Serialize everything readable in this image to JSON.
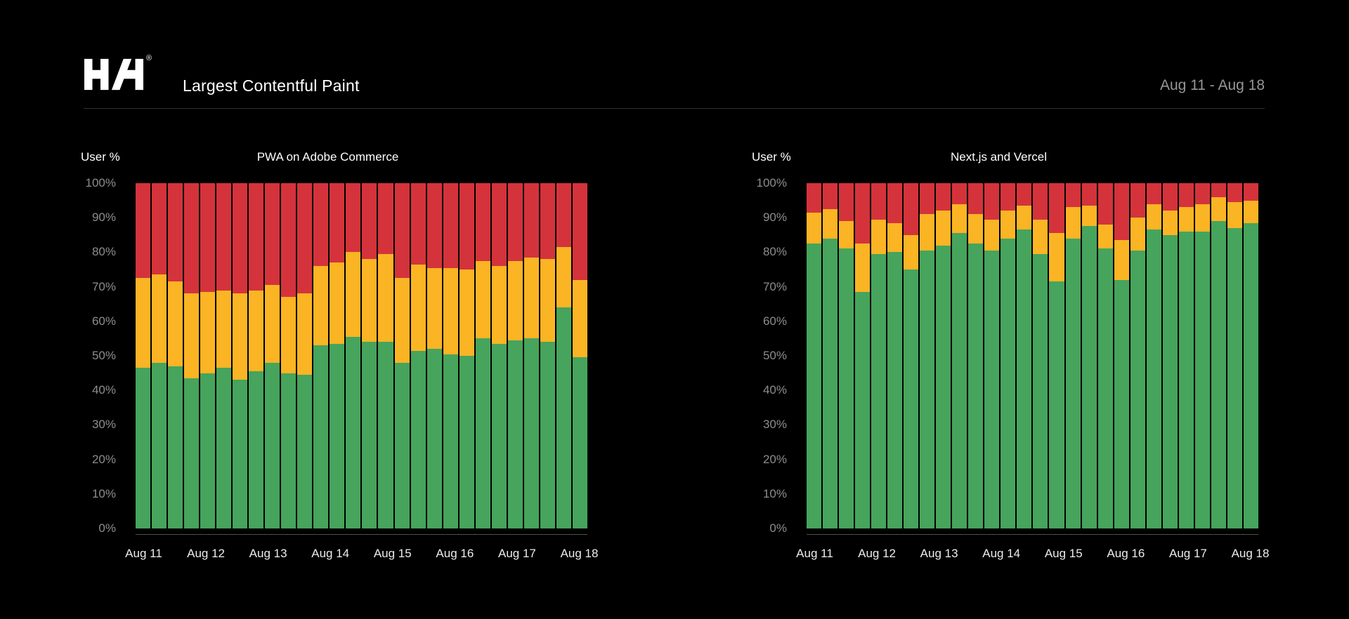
{
  "header": {
    "title": "Largest Contentful Paint",
    "date_range": "Aug 11 - Aug 18",
    "registered": "®",
    "logo_name": "HH"
  },
  "colors": {
    "background": "#000000",
    "good": "#46A45C",
    "needs_improvement": "#FBB424",
    "poor": "#D4333B",
    "y_tick_text": "#8D8D8D",
    "x_tick_text": "#ECECEC",
    "date_text": "#969696",
    "divider": "#2F2F2F",
    "axis_line": "#4F4F4F"
  },
  "chart_data": [
    {
      "type": "bar",
      "stacked": true,
      "title": "PWA on Adobe Commerce",
      "ylabel": "User %",
      "ylim": [
        0,
        100
      ],
      "grid": false,
      "legend": false,
      "y_ticks": [
        "100%",
        "90%",
        "80%",
        "70%",
        "60%",
        "50%",
        "40%",
        "30%",
        "20%",
        "10%",
        "0%"
      ],
      "x_tick_labels": [
        "Aug 11",
        "Aug 12",
        "Aug 13",
        "Aug 14",
        "Aug 15",
        "Aug 16",
        "Aug 17",
        "Aug 18"
      ],
      "series": [
        {
          "name": "good",
          "color": "#46A45C",
          "values": [
            46.5,
            48,
            47,
            43.5,
            45,
            46.5,
            43,
            45.5,
            48,
            45,
            44.5,
            53,
            53.5,
            55.5,
            54,
            54,
            48,
            51.5,
            52,
            50.5,
            50,
            55,
            53.5,
            54.5,
            55,
            54,
            64,
            49.5
          ]
        },
        {
          "name": "needs-improvement",
          "color": "#FBB424",
          "values": [
            26,
            25.5,
            24.5,
            24.5,
            23.5,
            22.5,
            25,
            23.5,
            22.5,
            22,
            23.5,
            23,
            23.5,
            24.5,
            24,
            25.5,
            24.5,
            25,
            23.5,
            25,
            25,
            22.5,
            22.5,
            23,
            23.5,
            24,
            17.5,
            22.5
          ]
        },
        {
          "name": "poor",
          "color": "#D4333B",
          "values": [
            27.5,
            26.5,
            28.5,
            32,
            31.5,
            31,
            32,
            31,
            29.5,
            33,
            32,
            24,
            23,
            20,
            22,
            20.5,
            27.5,
            23.5,
            24.5,
            24.5,
            25,
            22.5,
            24,
            22.5,
            21.5,
            22,
            18.5,
            28
          ]
        }
      ]
    },
    {
      "type": "bar",
      "stacked": true,
      "title": "Next.js and Vercel",
      "ylabel": "User %",
      "ylim": [
        0,
        100
      ],
      "grid": false,
      "legend": false,
      "y_ticks": [
        "100%",
        "90%",
        "80%",
        "70%",
        "60%",
        "50%",
        "40%",
        "30%",
        "20%",
        "10%",
        "0%"
      ],
      "x_tick_labels": [
        "Aug 11",
        "Aug 12",
        "Aug 13",
        "Aug 14",
        "Aug 15",
        "Aug 16",
        "Aug 17",
        "Aug 18"
      ],
      "series": [
        {
          "name": "good",
          "color": "#46A45C",
          "values": [
            82.5,
            84,
            81,
            68.5,
            79.5,
            80,
            75,
            80.5,
            82,
            85.5,
            82.5,
            80.5,
            84,
            86.5,
            79.5,
            71.5,
            84,
            87.5,
            81,
            72,
            80.5,
            86.5,
            85,
            86,
            86,
            89,
            87,
            88.5
          ]
        },
        {
          "name": "needs-improvement",
          "color": "#FBB424",
          "values": [
            9,
            8.5,
            8,
            14,
            10,
            8.5,
            10,
            10.5,
            10,
            8.5,
            8.5,
            9,
            8,
            7,
            10,
            14,
            9,
            6,
            7,
            11.5,
            9.5,
            7.5,
            7,
            7,
            8,
            7,
            7.5,
            6.5
          ]
        },
        {
          "name": "poor",
          "color": "#D4333B",
          "values": [
            8.5,
            7.5,
            11,
            17.5,
            10.5,
            11.5,
            15,
            9,
            8,
            6,
            9,
            10.5,
            8,
            6.5,
            10.5,
            14.5,
            7,
            6.5,
            12,
            16.5,
            10,
            6,
            8,
            7,
            6,
            4,
            5.5,
            5
          ]
        }
      ]
    }
  ]
}
